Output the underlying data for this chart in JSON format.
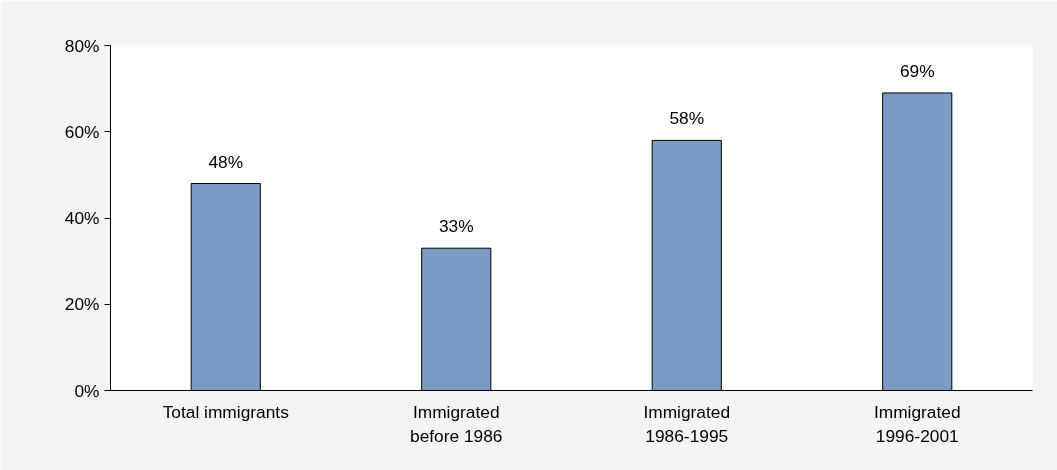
{
  "chart_data": {
    "type": "bar",
    "categories": [
      "Total immigrants",
      "Immigrated\nbefore 1986",
      "Immigrated\n1986-1995",
      "Immigrated\n1996-2001"
    ],
    "values": [
      48,
      33,
      58,
      69
    ],
    "value_labels": [
      "48%",
      "33%",
      "58%",
      "69%"
    ],
    "color": "#7a9cc4",
    "ylim": [
      0,
      80
    ],
    "yticks": [
      {
        "value": 0,
        "label": "0%"
      },
      {
        "value": 20,
        "label": "20%"
      },
      {
        "value": 40,
        "label": "40%"
      },
      {
        "value": 60,
        "label": "60%"
      },
      {
        "value": 80,
        "label": "80%"
      }
    ],
    "grid": false
  }
}
